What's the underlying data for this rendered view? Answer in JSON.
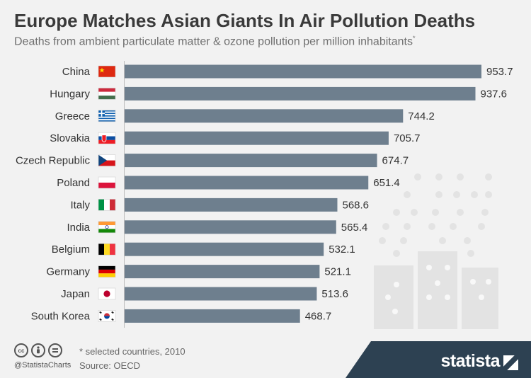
{
  "title": "Europe Matches Asian Giants In Air Pollution Deaths",
  "subtitle": "Deaths from ambient particulate matter & ozone pollution per million inhabitants",
  "subtitle_mark": "*",
  "footnote": "* selected countries, 2010",
  "source": "Source: OECD",
  "handle": "@StatistaCharts",
  "brand": "statista",
  "license_icons": [
    "cc-icon",
    "attribution-icon",
    "no-derivatives-icon"
  ],
  "colors": {
    "bar": "#6e7f8e",
    "background": "#f2f2f2",
    "brand": "#2d4152"
  },
  "chart_data": {
    "type": "bar",
    "orientation": "horizontal",
    "title": "Europe Matches Asian Giants In Air Pollution Deaths",
    "subtitle": "Deaths from ambient particulate matter & ozone pollution per million inhabitants",
    "categories": [
      "China",
      "Hungary",
      "Greece",
      "Slovakia",
      "Czech Republic",
      "Poland",
      "Italy",
      "India",
      "Belgium",
      "Germany",
      "Japan",
      "South Korea"
    ],
    "values": [
      953.7,
      937.6,
      744.2,
      705.7,
      674.7,
      651.4,
      568.6,
      565.4,
      532.1,
      521.1,
      513.6,
      468.7
    ],
    "value_labels": [
      "953.7",
      "937.6",
      "744.2",
      "705.7",
      "674.7",
      "651.4",
      "568.6",
      "565.4",
      "532.1",
      "521.1",
      "513.6",
      "468.7"
    ],
    "flags": [
      "china-flag-icon",
      "hungary-flag-icon",
      "greece-flag-icon",
      "slovakia-flag-icon",
      "czech-republic-flag-icon",
      "poland-flag-icon",
      "italy-flag-icon",
      "india-flag-icon",
      "belgium-flag-icon",
      "germany-flag-icon",
      "japan-flag-icon",
      "south-korea-flag-icon"
    ],
    "xlim": [
      0,
      953.7
    ],
    "grid": false,
    "legend": "none"
  }
}
